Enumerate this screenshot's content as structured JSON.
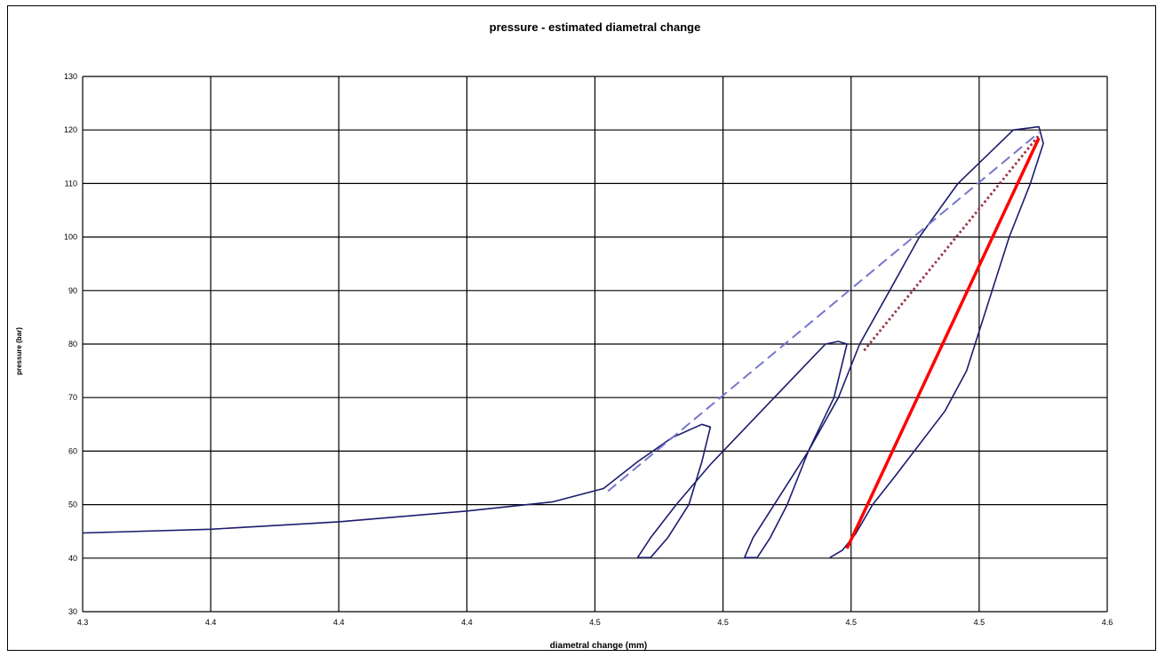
{
  "chart_data": {
    "type": "line",
    "title": "pressure - estimated diametral change",
    "xlabel": "diametral change (mm)",
    "ylabel": "pressure (bar)",
    "xlim": [
      4.3,
      4.6
    ],
    "ylim": [
      30,
      130
    ],
    "x_tick_labels": [
      "4.3",
      "4.4",
      "4.4",
      "4.4",
      "4.5",
      "4.5",
      "4.5",
      "4.5",
      "4.6"
    ],
    "y_tick_labels": [
      "30",
      "40",
      "50",
      "60",
      "70",
      "80",
      "90",
      "100",
      "110",
      "120",
      "130"
    ],
    "grid": true,
    "legend": "none",
    "series": [
      {
        "style": "solid",
        "color": "#1c1c6e",
        "points": [
          [
            4.3,
            44.7
          ],
          [
            4.3375,
            45.4
          ],
          [
            4.375,
            46.8
          ],
          [
            4.4125,
            48.8
          ],
          [
            4.4375,
            50.5
          ],
          [
            4.4525,
            53.0
          ],
          [
            4.4625,
            58.0
          ],
          [
            4.4725,
            62.5
          ],
          [
            4.4813,
            65.0
          ],
          [
            4.4838,
            64.5
          ],
          [
            4.4813,
            58.0
          ],
          [
            4.4775,
            50.0
          ],
          [
            4.4713,
            43.8
          ],
          [
            4.4663,
            40.1
          ],
          [
            4.4625,
            40.1
          ],
          [
            4.4663,
            43.8
          ],
          [
            4.4738,
            50.0
          ],
          [
            4.4838,
            57.5
          ],
          [
            4.5025,
            70.0
          ],
          [
            4.5175,
            80.0
          ],
          [
            4.5213,
            80.5
          ],
          [
            4.5238,
            80.0
          ],
          [
            4.52,
            70.0
          ],
          [
            4.5125,
            60.0
          ],
          [
            4.5063,
            50.0
          ],
          [
            4.5013,
            43.8
          ],
          [
            4.4975,
            40.1
          ],
          [
            4.4938,
            40.1
          ],
          [
            4.4963,
            43.8
          ],
          [
            4.5025,
            50.0
          ],
          [
            4.5125,
            60.0
          ],
          [
            4.5213,
            70.0
          ],
          [
            4.5275,
            80.0
          ],
          [
            4.5363,
            90.0
          ],
          [
            4.545,
            100.0
          ],
          [
            4.5563,
            110.0
          ],
          [
            4.5725,
            120.0
          ],
          [
            4.58,
            120.6
          ],
          [
            4.5813,
            117.5
          ],
          [
            4.5775,
            110.0
          ],
          [
            4.5713,
            100.0
          ],
          [
            4.5663,
            90.0
          ],
          [
            4.5588,
            75.0
          ],
          [
            4.5525,
            67.5
          ],
          [
            4.5375,
            55.0
          ],
          [
            4.5313,
            50.0
          ],
          [
            4.5263,
            44.5
          ],
          [
            4.5225,
            41.5
          ],
          [
            4.5188,
            40.1
          ]
        ]
      },
      {
        "style": "dashed",
        "color": "#7777cc",
        "points": [
          [
            4.4538,
            52.5
          ],
          [
            4.58,
            119.5
          ]
        ]
      },
      {
        "style": "dotted",
        "color": "#993344",
        "points": [
          [
            4.5288,
            78.8
          ],
          [
            4.58,
            119.0
          ]
        ]
      },
      {
        "style": "solid-thick",
        "color": "#ff0000",
        "points": [
          [
            4.5238,
            41.8
          ],
          [
            4.58,
            118.5
          ]
        ]
      }
    ]
  }
}
